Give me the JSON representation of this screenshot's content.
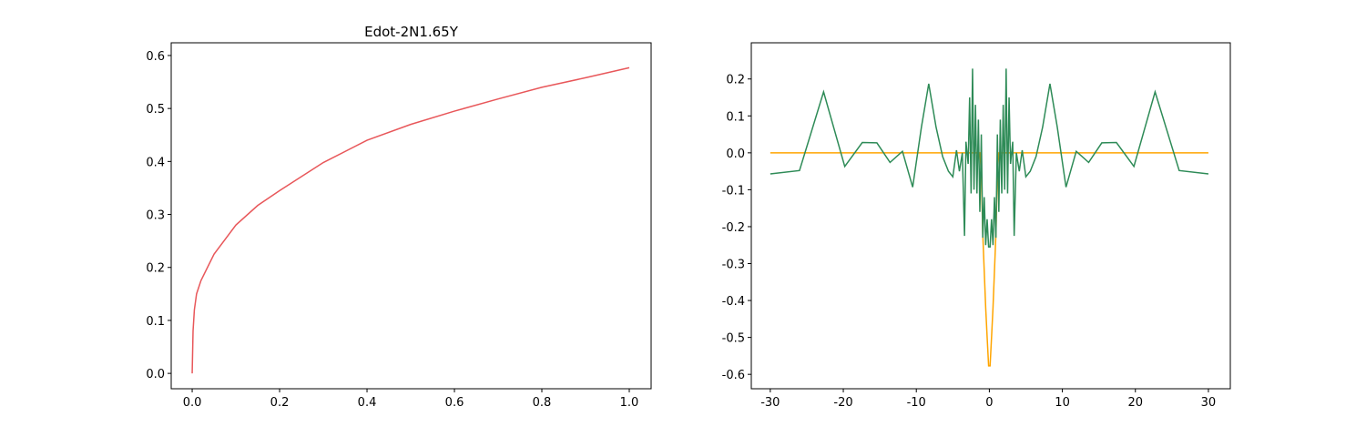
{
  "chart_data": [
    {
      "type": "line",
      "title": "Edot-2N1.65Y",
      "x": [
        0,
        0.002,
        0.005,
        0.01,
        0.02,
        0.05,
        0.1,
        0.15,
        0.2,
        0.3,
        0.4,
        0.5,
        0.6,
        0.7,
        0.8,
        0.9,
        1.0
      ],
      "series": [
        {
          "color": "#e8575a",
          "values": [
            0,
            0.08,
            0.12,
            0.15,
            0.175,
            0.225,
            0.28,
            0.317,
            0.345,
            0.398,
            0.44,
            0.47,
            0.495,
            0.518,
            0.54,
            0.558,
            0.577
          ]
        }
      ],
      "xlim": [
        -0.048,
        1.05
      ],
      "ylim": [
        -0.029,
        0.624
      ],
      "xticks": [
        {
          "value": 0,
          "label": "0.0"
        },
        0.2,
        0.4,
        0.6,
        0.8,
        {
          "value": 1,
          "label": "1.0"
        }
      ],
      "yticks": [
        {
          "value": 0,
          "label": "0.0"
        },
        0.1,
        0.2,
        0.3,
        0.4,
        0.5,
        0.6
      ]
    },
    {
      "type": "line",
      "x": [
        -30,
        -26,
        -22.7,
        -19.8,
        -17.4,
        -15.4,
        -13.6,
        -11.9,
        -10.5,
        -9.3,
        -8.3,
        -7.3,
        -6.4,
        -5.6,
        -5,
        -4.5,
        -4.1,
        -3.7,
        -3.4,
        -3.2,
        -2.9,
        -2.7,
        -2.5,
        -2.3,
        -2.1,
        -1.9,
        -1.7,
        -1.5,
        -1.3,
        -1.1,
        -0.9,
        -0.7,
        -0.5,
        -0.3,
        -0.1,
        0.1,
        0.3,
        0.5,
        0.7,
        0.9,
        1.1,
        1.3,
        1.5,
        1.7,
        1.9,
        2.1,
        2.3,
        2.5,
        2.7,
        2.9,
        3.2,
        3.4,
        3.7,
        4.1,
        4.5,
        5,
        5.6,
        6.4,
        7.3,
        8.3,
        9.3,
        10.5,
        11.9,
        13.6,
        15.4,
        17.4,
        19.8,
        22.7,
        26,
        30
      ],
      "series": [
        {
          "color": "#ffa500",
          "values": [
            0,
            0,
            0,
            0,
            0,
            0,
            0,
            0,
            0,
            0,
            0,
            0,
            0,
            0,
            0,
            0,
            0,
            0,
            0,
            0,
            0,
            0,
            0,
            0,
            0,
            0,
            0,
            0,
            0,
            -0.05,
            -0.22,
            -0.32,
            -0.42,
            -0.5,
            -0.577,
            -0.577,
            -0.5,
            -0.42,
            -0.32,
            -0.22,
            -0.05,
            0,
            0,
            0,
            0,
            0,
            0,
            0,
            0,
            0,
            0,
            0,
            0,
            0,
            0,
            0,
            0,
            0,
            0,
            0,
            0,
            0,
            0,
            0,
            0,
            0,
            0,
            0,
            0,
            0
          ]
        },
        {
          "color": "#2e8b57",
          "values": [
            -0.057,
            -0.048,
            0.165,
            -0.037,
            0.028,
            0.027,
            -0.026,
            0.004,
            -0.093,
            0.07,
            0.187,
            0.07,
            -0.01,
            -0.05,
            -0.065,
            0.007,
            -0.05,
            0.0,
            -0.225,
            0.03,
            -0.03,
            0.15,
            -0.11,
            0.228,
            -0.1,
            0.13,
            -0.11,
            0.09,
            -0.16,
            0.05,
            -0.23,
            -0.12,
            -0.25,
            -0.18,
            -0.255,
            -0.255,
            -0.18,
            -0.25,
            -0.12,
            -0.23,
            0.05,
            -0.16,
            0.09,
            -0.11,
            0.13,
            -0.1,
            0.228,
            -0.11,
            0.15,
            -0.03,
            0.03,
            -0.225,
            0.0,
            -0.05,
            0.007,
            -0.065,
            -0.05,
            -0.01,
            0.07,
            0.187,
            0.07,
            -0.093,
            0.004,
            -0.026,
            0.027,
            0.028,
            -0.037,
            0.165,
            -0.048,
            -0.057
          ]
        }
      ],
      "xlim": [
        -32.6,
        33
      ],
      "ylim": [
        -0.639,
        0.298
      ],
      "xticks": [
        -30,
        -20,
        -10,
        0,
        10,
        20,
        30
      ],
      "yticks": [
        0.2,
        0.1,
        {
          "value": 0,
          "label": "0.0"
        },
        -0.1,
        -0.2,
        -0.3,
        -0.4,
        -0.5,
        -0.6
      ]
    }
  ]
}
